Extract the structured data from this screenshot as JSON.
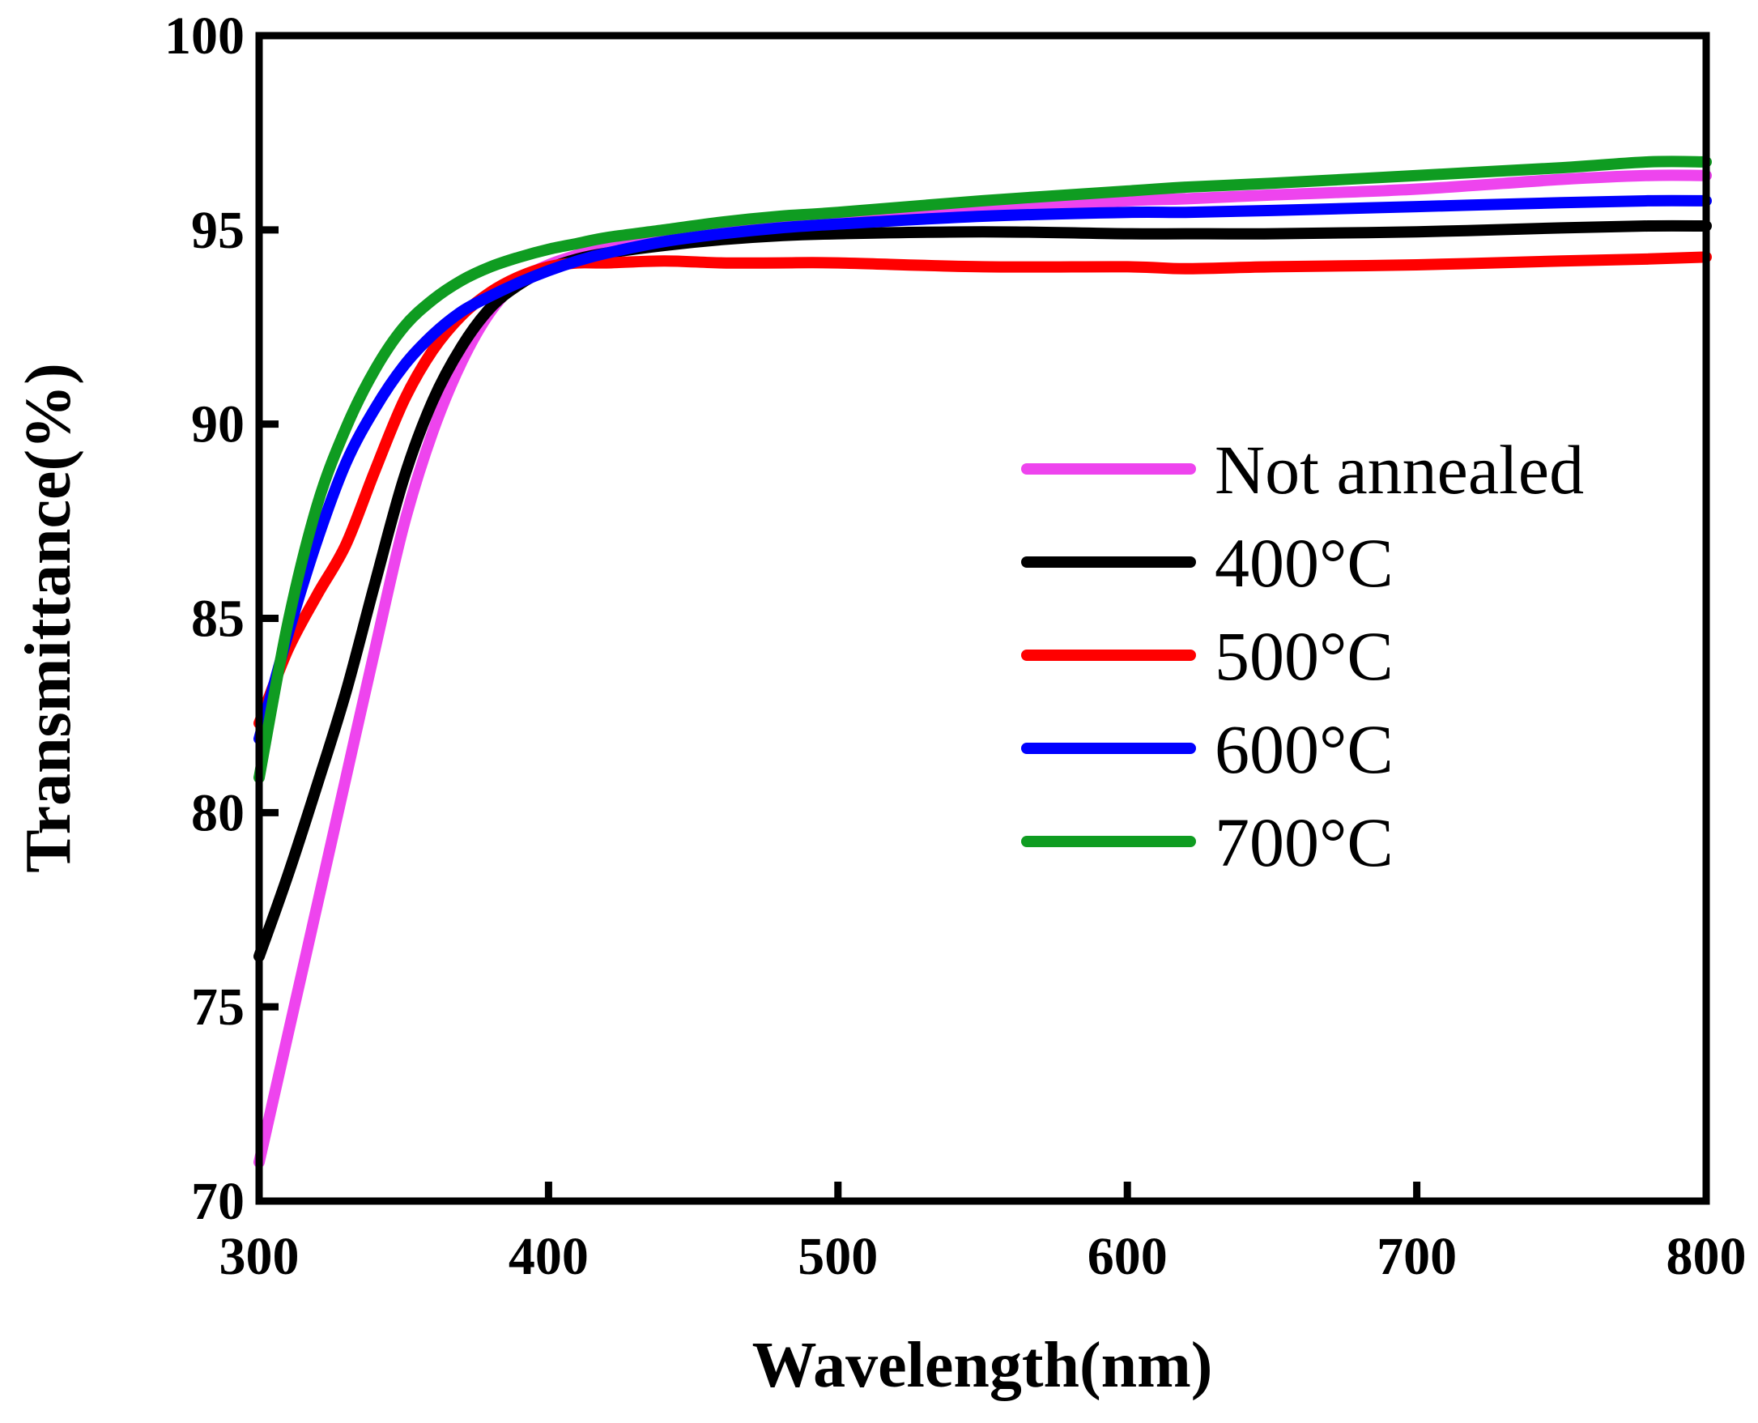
{
  "chart_data": {
    "type": "line",
    "title": "",
    "xlabel": "Wavelength(nm)",
    "ylabel": "Transmittance(%)",
    "xlim": [
      300,
      800
    ],
    "ylim": [
      70,
      100
    ],
    "xticks": [
      300,
      400,
      500,
      600,
      700,
      800
    ],
    "yticks": [
      70,
      75,
      80,
      85,
      90,
      95,
      100
    ],
    "grid": false,
    "legend_position": "center-right",
    "x": [
      300,
      310,
      320,
      330,
      340,
      350,
      360,
      370,
      380,
      390,
      400,
      410,
      420,
      440,
      460,
      480,
      500,
      550,
      600,
      620,
      650,
      700,
      750,
      780,
      800
    ],
    "series": [
      {
        "name": "Not annealed",
        "color": "#ee44ee",
        "values": [
          71.0,
          74.3,
          77.6,
          80.9,
          84.2,
          87.4,
          89.8,
          91.6,
          92.9,
          93.7,
          94.1,
          94.35,
          94.55,
          94.85,
          95.05,
          95.2,
          95.3,
          95.55,
          95.75,
          95.8,
          95.9,
          96.05,
          96.3,
          96.4,
          96.4
        ]
      },
      {
        "name": "400°C",
        "color": "#000000",
        "values": [
          76.3,
          78.4,
          80.7,
          83.1,
          85.9,
          88.6,
          90.6,
          92.0,
          93.0,
          93.6,
          94.0,
          94.25,
          94.4,
          94.6,
          94.75,
          94.85,
          94.9,
          94.95,
          94.9,
          94.9,
          94.9,
          94.95,
          95.05,
          95.1,
          95.1
        ]
      },
      {
        "name": "500°C",
        "color": "#ff0000",
        "values": [
          82.3,
          84.2,
          85.6,
          86.9,
          88.8,
          90.6,
          91.9,
          92.8,
          93.4,
          93.8,
          94.05,
          94.15,
          94.15,
          94.2,
          94.15,
          94.15,
          94.15,
          94.05,
          94.05,
          94.0,
          94.05,
          94.1,
          94.2,
          94.25,
          94.3
        ]
      },
      {
        "name": "600°C",
        "color": "#0000ff",
        "values": [
          81.9,
          84.6,
          87.0,
          89.0,
          90.4,
          91.5,
          92.3,
          92.9,
          93.3,
          93.65,
          93.95,
          94.2,
          94.4,
          94.7,
          94.9,
          95.05,
          95.15,
          95.35,
          95.45,
          95.45,
          95.5,
          95.6,
          95.7,
          95.75,
          95.75
        ]
      },
      {
        "name": "700°C",
        "color": "#0f9c21",
        "values": [
          80.9,
          84.9,
          87.9,
          89.9,
          91.4,
          92.5,
          93.2,
          93.7,
          94.05,
          94.3,
          94.5,
          94.65,
          94.8,
          95.0,
          95.2,
          95.35,
          95.45,
          95.75,
          96.0,
          96.1,
          96.2,
          96.4,
          96.6,
          96.75,
          96.75
        ]
      }
    ]
  }
}
